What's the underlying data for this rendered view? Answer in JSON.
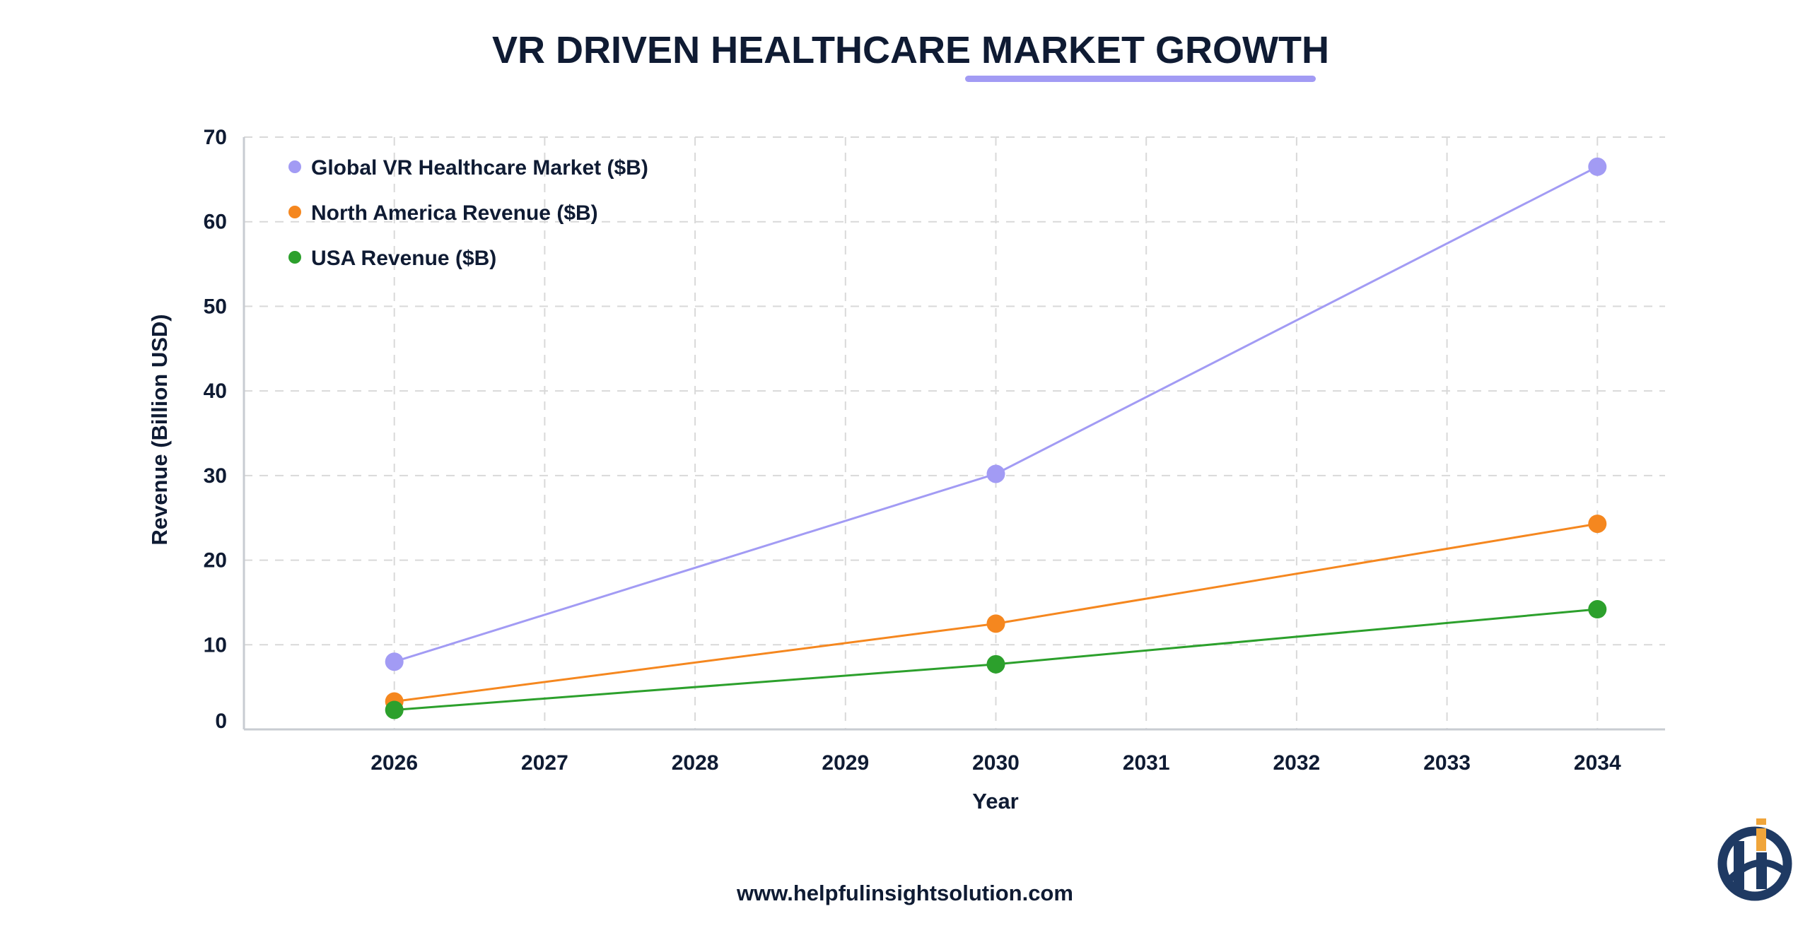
{
  "title": "VR DRIVEN HEALTHCARE MARKET GROWTH",
  "footer_url": "www.helpfulinsightsolution.com",
  "logo": {
    "text": "hi",
    "colors": {
      "navy": "#1f3a63",
      "accent": "#f0a53a"
    }
  },
  "chart_data": {
    "type": "line",
    "title": "VR DRIVEN HEALTHCARE MARKET GROWTH",
    "xlabel": "Year",
    "ylabel": "Revenue (Billion USD)",
    "x_ticks": [
      "2026",
      "2027",
      "2028",
      "2029",
      "2030",
      "2031",
      "2032",
      "2033",
      "2034"
    ],
    "y_ticks": [
      "0",
      "10",
      "20",
      "30",
      "40",
      "50",
      "60",
      "70"
    ],
    "xlim": [
      2025,
      2034.45
    ],
    "ylim": [
      0,
      70
    ],
    "grid": true,
    "legend_position": "top-left",
    "x": [
      2026,
      2030,
      2034
    ],
    "series": [
      {
        "name": "Global VR Healthcare Market ($B)",
        "color": "#a29bf4",
        "values": [
          8.0,
          30.2,
          66.5
        ]
      },
      {
        "name": "North America Revenue ($B)",
        "color": "#f5871f",
        "values": [
          3.3,
          12.5,
          24.3
        ]
      },
      {
        "name": "USA Revenue ($B)",
        "color": "#2ca02c",
        "values": [
          2.3,
          7.7,
          14.2
        ]
      }
    ]
  }
}
